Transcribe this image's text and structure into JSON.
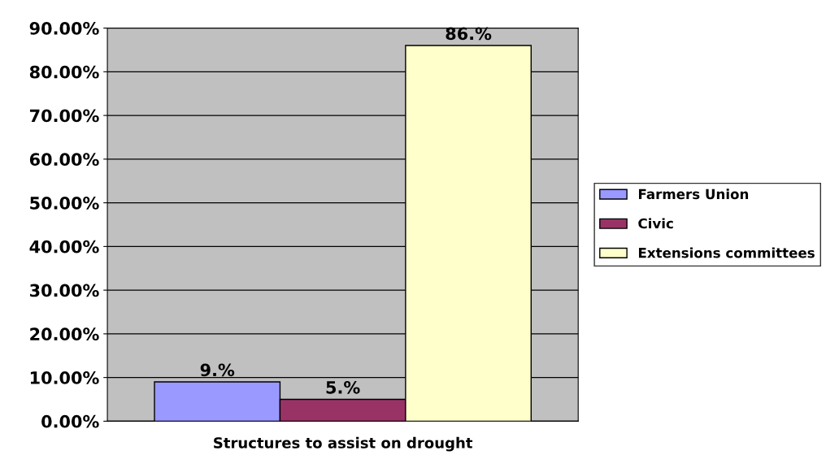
{
  "chart_data": {
    "type": "bar",
    "categories": [
      "Structures to assist on drought"
    ],
    "series": [
      {
        "name": "Farmers Union",
        "color": "#9999ff",
        "values": [
          9
        ],
        "value_labels": [
          "9.%"
        ]
      },
      {
        "name": "Civic",
        "color": "#993366",
        "values": [
          5
        ],
        "value_labels": [
          "5.%"
        ]
      },
      {
        "name": "Extensions committees",
        "color": "#ffffcc",
        "values": [
          86
        ],
        "value_labels": [
          "86.%"
        ]
      }
    ],
    "ylim": [
      0,
      90
    ],
    "yticks": [
      {
        "value": 0,
        "label": "0.00%"
      },
      {
        "value": 10,
        "label": "10.00%"
      },
      {
        "value": 20,
        "label": "20.00%"
      },
      {
        "value": 30,
        "label": "30.00%"
      },
      {
        "value": 40,
        "label": "40.00%"
      },
      {
        "value": 50,
        "label": "50.00%"
      },
      {
        "value": 60,
        "label": "60.00%"
      },
      {
        "value": 70,
        "label": "70.00%"
      },
      {
        "value": 80,
        "label": "80.00%"
      },
      {
        "value": 90,
        "label": "90.00%"
      }
    ],
    "grid": "y",
    "legend": "right"
  }
}
